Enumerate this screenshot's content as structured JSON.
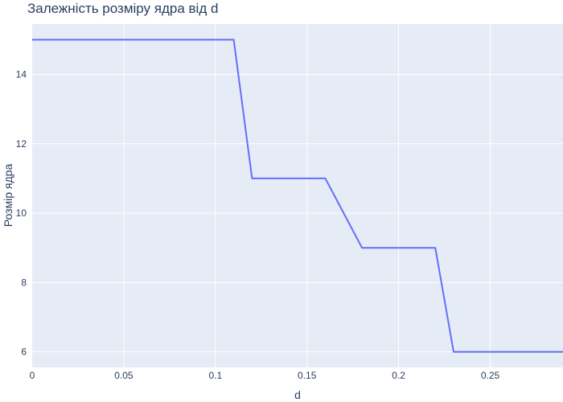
{
  "chart_data": {
    "type": "line",
    "title": "Залежність розміру ядра від d",
    "xlabel": "d",
    "ylabel": "Розмір ядра",
    "xlim": [
      0,
      0.2897
    ],
    "ylim": [
      5.55,
      15.45
    ],
    "xticks": [
      0,
      0.05,
      0.1,
      0.15,
      0.2,
      0.25
    ],
    "xtick_labels": [
      "0",
      "0.05",
      "0.1",
      "0.15",
      "0.2",
      "0.25"
    ],
    "yticks": [
      6,
      8,
      10,
      12,
      14
    ],
    "ytick_labels": [
      "6",
      "8",
      "10",
      "12",
      "14"
    ],
    "grid": true,
    "series": [
      {
        "name": "Розмір ядра",
        "color": "#636efa",
        "x": [
          0,
          0.11,
          0.12,
          0.16,
          0.18,
          0.22,
          0.23,
          0.29
        ],
        "y": [
          15,
          15,
          11,
          11,
          9,
          9,
          6,
          6
        ]
      }
    ]
  },
  "colors": {
    "plot_bg": "#e5ecf6",
    "grid": "#ffffff",
    "text": "#2a3f5f"
  }
}
